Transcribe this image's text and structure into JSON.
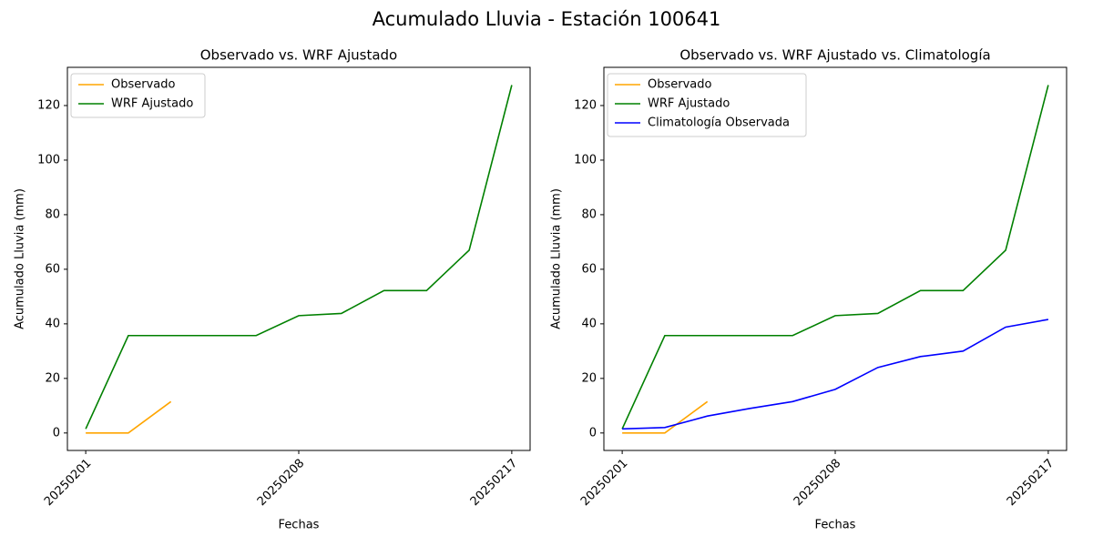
{
  "title": "Acumulado Lluvia - Estación 100641",
  "chart_data": [
    {
      "type": "line",
      "title": "Observado vs. WRF Ajustado",
      "xlabel": "Fechas",
      "ylabel": "Acumulado Lluvia (mm)",
      "categories": [
        "20250201",
        null,
        null,
        null,
        null,
        "20250208",
        null,
        null,
        null,
        null,
        "20250217"
      ],
      "series": [
        {
          "name": "Observado",
          "color": "orange",
          "values": [
            0,
            0,
            11.5,
            null,
            null,
            null,
            null,
            null,
            null,
            null,
            null
          ]
        },
        {
          "name": "WRF Ajustado",
          "color": "green",
          "values": [
            1.5,
            35.7,
            35.7,
            35.7,
            35.7,
            43,
            43.8,
            52.2,
            52.2,
            67,
            127.5
          ]
        }
      ],
      "ylim": [
        -6.4,
        134
      ],
      "yticks": [
        0,
        20,
        40,
        60,
        80,
        100,
        120
      ],
      "grid": false,
      "legend": "upper left"
    },
    {
      "type": "line",
      "title": "Observado vs. WRF Ajustado vs. Climatología",
      "xlabel": "Fechas",
      "ylabel": "Acumulado Lluvia (mm)",
      "categories": [
        "20250201",
        null,
        null,
        null,
        null,
        "20250208",
        null,
        null,
        null,
        null,
        "20250217"
      ],
      "series": [
        {
          "name": "Observado",
          "color": "orange",
          "values": [
            0,
            0,
            11.5,
            null,
            null,
            null,
            null,
            null,
            null,
            null,
            null
          ]
        },
        {
          "name": "WRF Ajustado",
          "color": "green",
          "values": [
            1.5,
            35.7,
            35.7,
            35.7,
            35.7,
            43,
            43.8,
            52.2,
            52.2,
            67,
            127.5
          ]
        },
        {
          "name": "Climatología Observada",
          "color": "blue",
          "values": [
            1.5,
            2,
            6.2,
            9,
            11.5,
            16,
            24,
            28,
            30,
            38.8,
            41.6
          ]
        }
      ],
      "ylim": [
        -6.4,
        134
      ],
      "yticks": [
        0,
        20,
        40,
        60,
        80,
        100,
        120
      ],
      "grid": false,
      "legend": "upper left"
    }
  ]
}
